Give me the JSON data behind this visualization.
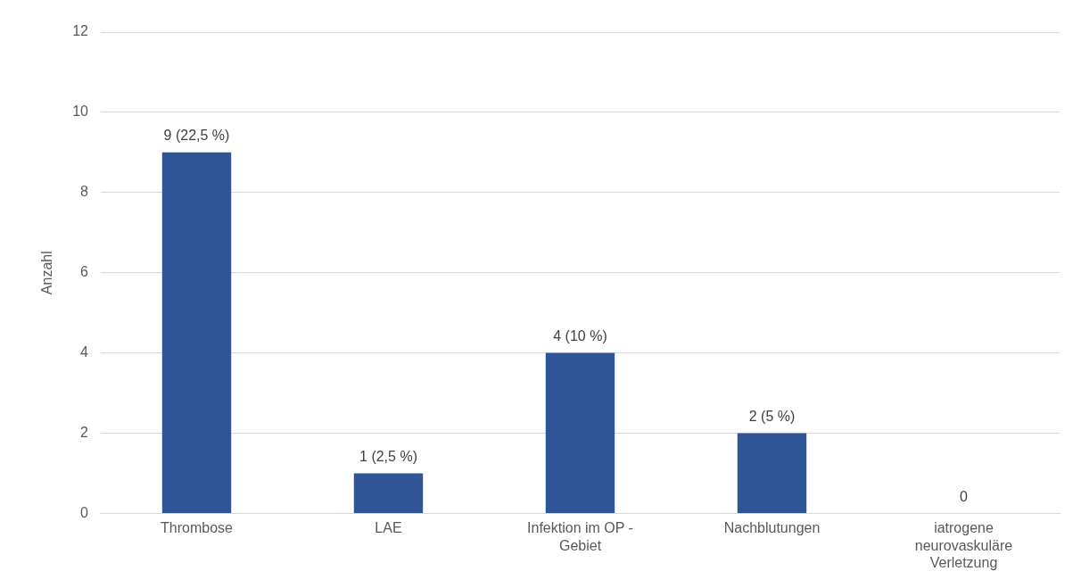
{
  "chart_data": {
    "type": "bar",
    "ylabel": "Anzahl",
    "categories": [
      "Thrombose",
      "LAE",
      "Infektion im OP - Gebiet",
      "Nachblutungen",
      "iatrogene neurovaskuläre Verletzung"
    ],
    "values": [
      9,
      1,
      4,
      2,
      0
    ],
    "value_labels": [
      "9 (22,5 %)",
      "1 (2,5 %)",
      "4 (10 %)",
      "2 (5 %)",
      "0"
    ],
    "color": "#2f5597",
    "ylim": [
      0,
      12
    ],
    "yticks": [
      0,
      2,
      4,
      6,
      8,
      10,
      12
    ],
    "grid": "y",
    "legend": false
  }
}
